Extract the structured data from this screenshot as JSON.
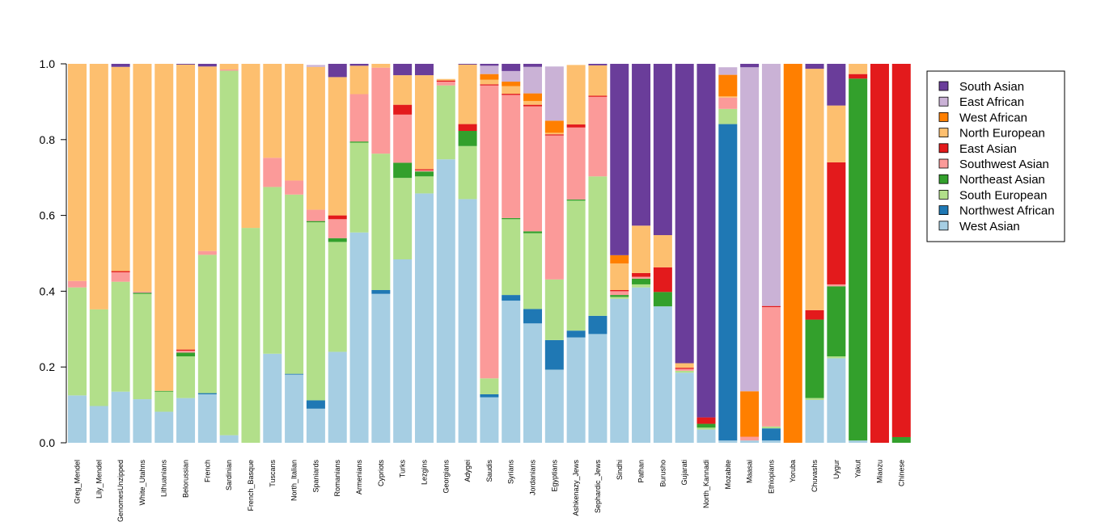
{
  "chart_data": {
    "type": "bar",
    "stacked": true,
    "title": "",
    "xlabel": "",
    "ylabel": "",
    "ylim": [
      0,
      1
    ],
    "y_ticks": [
      "0.0",
      "0.2",
      "0.4",
      "0.6",
      "0.8",
      "1.0"
    ],
    "legend_position": "right",
    "categories": [
      "Greg_Mendel",
      "Lily_Mendel",
      "GenomesUnzipped",
      "White_Utahns",
      "Lithuanians",
      "Belorussian",
      "French",
      "Sardinian",
      "French_Basque",
      "Tuscans",
      "North_Italian",
      "Spaniards",
      "Romanians",
      "Armenians",
      "Cypriots",
      "Turks",
      "Lezgins",
      "Georgians",
      "Adygei",
      "Saudis",
      "Syrians",
      "Jordanians",
      "Egyptians",
      "Ashkenazy_Jews",
      "Sephardic_Jews",
      "Sindhi",
      "Pathan",
      "Burusho",
      "Gujarati",
      "North_Kannadi",
      "Mozabite",
      "Maasai",
      "Ethiopians",
      "Yoruba",
      "Chuvashs",
      "Uygur",
      "Yakut",
      "Miaozu",
      "Chinese"
    ],
    "series": [
      {
        "name": "West Asian",
        "color": "#A6CEE3",
        "values": [
          0.125,
          0.097,
          0.135,
          0.115,
          0.082,
          0.118,
          0.128,
          0.02,
          0,
          0.235,
          0.18,
          0.09,
          0.24,
          0.555,
          0.393,
          0.484,
          0.658,
          0.748,
          0.643,
          0.12,
          0.375,
          0.315,
          0.193,
          0.278,
          0.287,
          0.38,
          0.41,
          0.36,
          0.185,
          0.035,
          0.006,
          0.006,
          0.006,
          0,
          0.113,
          0.223,
          0.006,
          0,
          0
        ]
      },
      {
        "name": "Northwest African",
        "color": "#1F78B4",
        "values": [
          0,
          0,
          0,
          0,
          0,
          0,
          0.003,
          0,
          0,
          0,
          0.002,
          0.022,
          0,
          0,
          0.01,
          0,
          0,
          0,
          0,
          0.008,
          0.015,
          0.038,
          0.078,
          0.018,
          0.048,
          0,
          0,
          0,
          0,
          0,
          0.835,
          0,
          0.032,
          0,
          0,
          0,
          0,
          0,
          0
        ]
      },
      {
        "name": "South European",
        "color": "#B2DF8A",
        "values": [
          0.285,
          0.255,
          0.29,
          0.278,
          0.053,
          0.11,
          0.365,
          0.962,
          0.567,
          0.44,
          0.473,
          0.47,
          0.29,
          0.237,
          0.36,
          0.215,
          0.045,
          0.195,
          0.14,
          0.042,
          0.2,
          0.2,
          0.16,
          0.343,
          0.368,
          0.005,
          0.008,
          0,
          0.005,
          0.005,
          0.04,
          0,
          0.005,
          0,
          0.005,
          0.005,
          0,
          0,
          0
        ]
      },
      {
        "name": "Northeast Asian",
        "color": "#33A02C",
        "values": [
          0,
          0,
          0,
          0.003,
          0.002,
          0.01,
          0,
          0,
          0,
          0,
          0,
          0.003,
          0.01,
          0.003,
          0,
          0.04,
          0.013,
          0,
          0.04,
          0,
          0.003,
          0.005,
          0,
          0.003,
          0,
          0.005,
          0.015,
          0.038,
          0,
          0.01,
          0,
          0,
          0,
          0,
          0.207,
          0.185,
          0.955,
          0,
          0.015
        ]
      },
      {
        "name": "Southwest Asian",
        "color": "#FB9A99",
        "values": [
          0.017,
          0,
          0.025,
          0.003,
          0,
          0.005,
          0.01,
          0.003,
          0,
          0.077,
          0.037,
          0.03,
          0.05,
          0.125,
          0.227,
          0.127,
          0.003,
          0.01,
          0,
          0.773,
          0.325,
          0.33,
          0.38,
          0.19,
          0.21,
          0.01,
          0.005,
          0,
          0.005,
          0,
          0.03,
          0.01,
          0.315,
          0,
          0,
          0.005,
          0,
          0,
          0
        ]
      },
      {
        "name": "East Asian",
        "color": "#E31A1C",
        "values": [
          0,
          0,
          0.003,
          0,
          0,
          0.003,
          0,
          0,
          0,
          0,
          0,
          0,
          0.01,
          0,
          0,
          0.026,
          0.003,
          0.003,
          0.018,
          0.003,
          0.003,
          0.004,
          0.003,
          0.008,
          0.003,
          0.003,
          0.01,
          0.065,
          0.003,
          0.017,
          0,
          0,
          0.003,
          0,
          0.025,
          0.322,
          0.012,
          1,
          0.985
        ]
      },
      {
        "name": "North European",
        "color": "#FDBF6F",
        "values": [
          0.573,
          0.648,
          0.539,
          0.601,
          0.863,
          0.752,
          0.487,
          0.015,
          0.433,
          0.248,
          0.308,
          0.377,
          0.365,
          0.075,
          0.01,
          0.078,
          0.248,
          0.004,
          0.157,
          0.012,
          0.02,
          0.01,
          0.004,
          0.157,
          0.08,
          0.07,
          0.125,
          0.085,
          0.012,
          0,
          0.003,
          0,
          0,
          0,
          0.637,
          0.15,
          0.027,
          0,
          0
        ]
      },
      {
        "name": "West African",
        "color": "#FF7F00",
        "values": [
          0,
          0,
          0,
          0,
          0,
          0,
          0,
          0,
          0,
          0,
          0,
          0,
          0,
          0,
          0,
          0,
          0,
          0,
          0,
          0.015,
          0.012,
          0.02,
          0.032,
          0,
          0,
          0.022,
          0,
          0,
          0,
          0,
          0.057,
          0.12,
          0,
          1,
          0,
          0,
          0,
          0,
          0
        ]
      },
      {
        "name": "East African",
        "color": "#CAB2D6",
        "values": [
          0,
          0,
          0,
          0,
          0,
          0,
          0,
          0,
          0,
          0,
          0,
          0.005,
          0,
          0,
          0,
          0,
          0,
          0,
          0,
          0.022,
          0.028,
          0.07,
          0.143,
          0,
          0,
          0,
          0,
          0,
          0,
          0,
          0.02,
          0.855,
          0.64,
          0,
          0,
          0,
          0,
          0,
          0
        ]
      },
      {
        "name": "South Asian",
        "color": "#6A3D9A",
        "values": [
          0,
          0,
          0.008,
          0,
          0,
          0.012,
          0.007,
          0,
          0,
          0,
          0,
          0,
          0.035,
          0.005,
          0,
          0.03,
          0.03,
          0,
          0.002,
          0.005,
          0.019,
          0.008,
          0,
          0,
          0.004,
          0.505,
          0.427,
          0.452,
          0.79,
          0.933,
          0,
          0.009,
          0,
          0,
          0.013,
          0.11,
          0,
          0,
          0
        ]
      }
    ]
  }
}
